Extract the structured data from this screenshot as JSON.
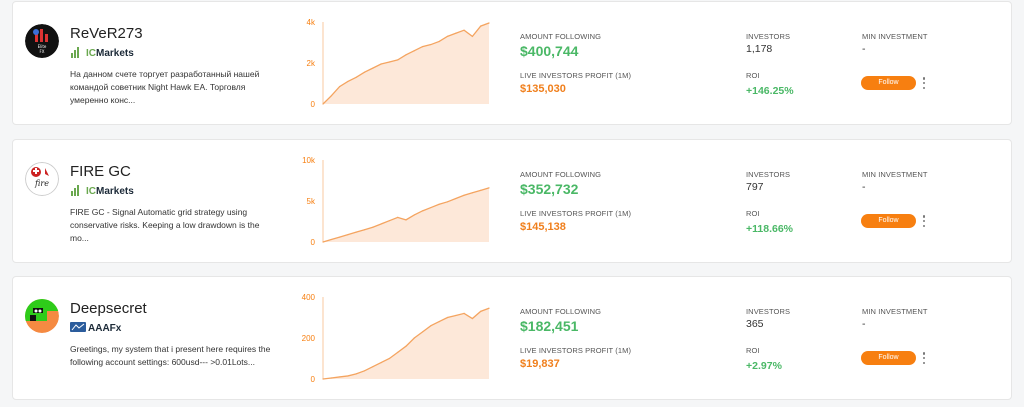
{
  "labels": {
    "amount_following": "AMOUNT FOLLOWING",
    "live_profit": "LIVE INVESTORS PROFIT (1M)",
    "investors": "INVESTORS",
    "roi": "ROI",
    "min_investment": "MIN INVESTMENT",
    "follow": "Follow"
  },
  "colors": {
    "accent": "#f77f10",
    "profit_green": "#4ab866",
    "chart_line": "#f4a460",
    "chart_fill": "#fde8d9"
  },
  "traders": [
    {
      "name": "ReVeR273",
      "avatar_icon": "rever-logo-icon",
      "broker": "Markets",
      "broker_prefix": "IC",
      "broker_icon": "icmarkets-logo-icon",
      "description": "На данном счете торгует разработанный нашей командой советник Night Hawk EA. Торговля умеренно конс...",
      "amount_following": "$400,744",
      "live_profit": "$135,030",
      "investors": "1,178",
      "roi": "+146.25%",
      "min_investment": "-"
    },
    {
      "name": "FIRE GC",
      "avatar_icon": "fire-gc-logo-icon",
      "broker": "Markets",
      "broker_prefix": "IC",
      "broker_icon": "icmarkets-logo-icon",
      "description": "FIRE GC - Signal Automatic grid strategy using conservative risks. Keeping a low drawdown is the mo...",
      "amount_following": "$352,732",
      "live_profit": "$145,138",
      "investors": "797",
      "roi": "+118.66%",
      "min_investment": "-"
    },
    {
      "name": "Deepsecret",
      "avatar_icon": "deepsecret-logo-icon",
      "broker": "AAAFx",
      "broker_prefix": "",
      "broker_icon": "aaafx-logo-icon",
      "description": "Greetings, my system that i present here requires the following account settings: 600usd--- >0.01Lots...",
      "amount_following": "$182,451",
      "live_profit": "$19,837",
      "investors": "365",
      "roi": "+2.97%",
      "min_investment": "-"
    }
  ],
  "chart_data": [
    {
      "type": "area",
      "yticks": [
        "0",
        "2k",
        "4k"
      ],
      "ylim": [
        0,
        4000
      ],
      "x": [
        0,
        1,
        2,
        3,
        4,
        5,
        6,
        7,
        8,
        9,
        10,
        11,
        12,
        13,
        14,
        15,
        16,
        17,
        18,
        19,
        20
      ],
      "values": [
        0,
        400,
        850,
        1100,
        1300,
        1550,
        1750,
        1950,
        2050,
        2150,
        2400,
        2600,
        2800,
        2900,
        3050,
        3300,
        3450,
        3600,
        3300,
        3800,
        3950
      ]
    },
    {
      "type": "area",
      "yticks": [
        "0",
        "5k",
        "10k"
      ],
      "ylim": [
        0,
        10000
      ],
      "x": [
        0,
        1,
        2,
        3,
        4,
        5,
        6,
        7,
        8,
        9,
        10,
        11,
        12,
        13,
        14,
        15,
        16,
        17,
        18,
        19,
        20
      ],
      "values": [
        0,
        300,
        600,
        900,
        1200,
        1500,
        1800,
        2200,
        2600,
        3000,
        2700,
        3300,
        3800,
        4200,
        4600,
        4900,
        5300,
        5700,
        6000,
        6300,
        6600
      ]
    },
    {
      "type": "area",
      "yticks": [
        "0",
        "200",
        "400"
      ],
      "ylim": [
        0,
        400
      ],
      "x": [
        0,
        1,
        2,
        3,
        4,
        5,
        6,
        7,
        8,
        9,
        10,
        11,
        12,
        13,
        14,
        15,
        16,
        17,
        18,
        19,
        20
      ],
      "values": [
        0,
        5,
        10,
        15,
        25,
        40,
        60,
        80,
        100,
        130,
        160,
        200,
        230,
        260,
        280,
        300,
        310,
        320,
        295,
        330,
        345
      ]
    }
  ]
}
